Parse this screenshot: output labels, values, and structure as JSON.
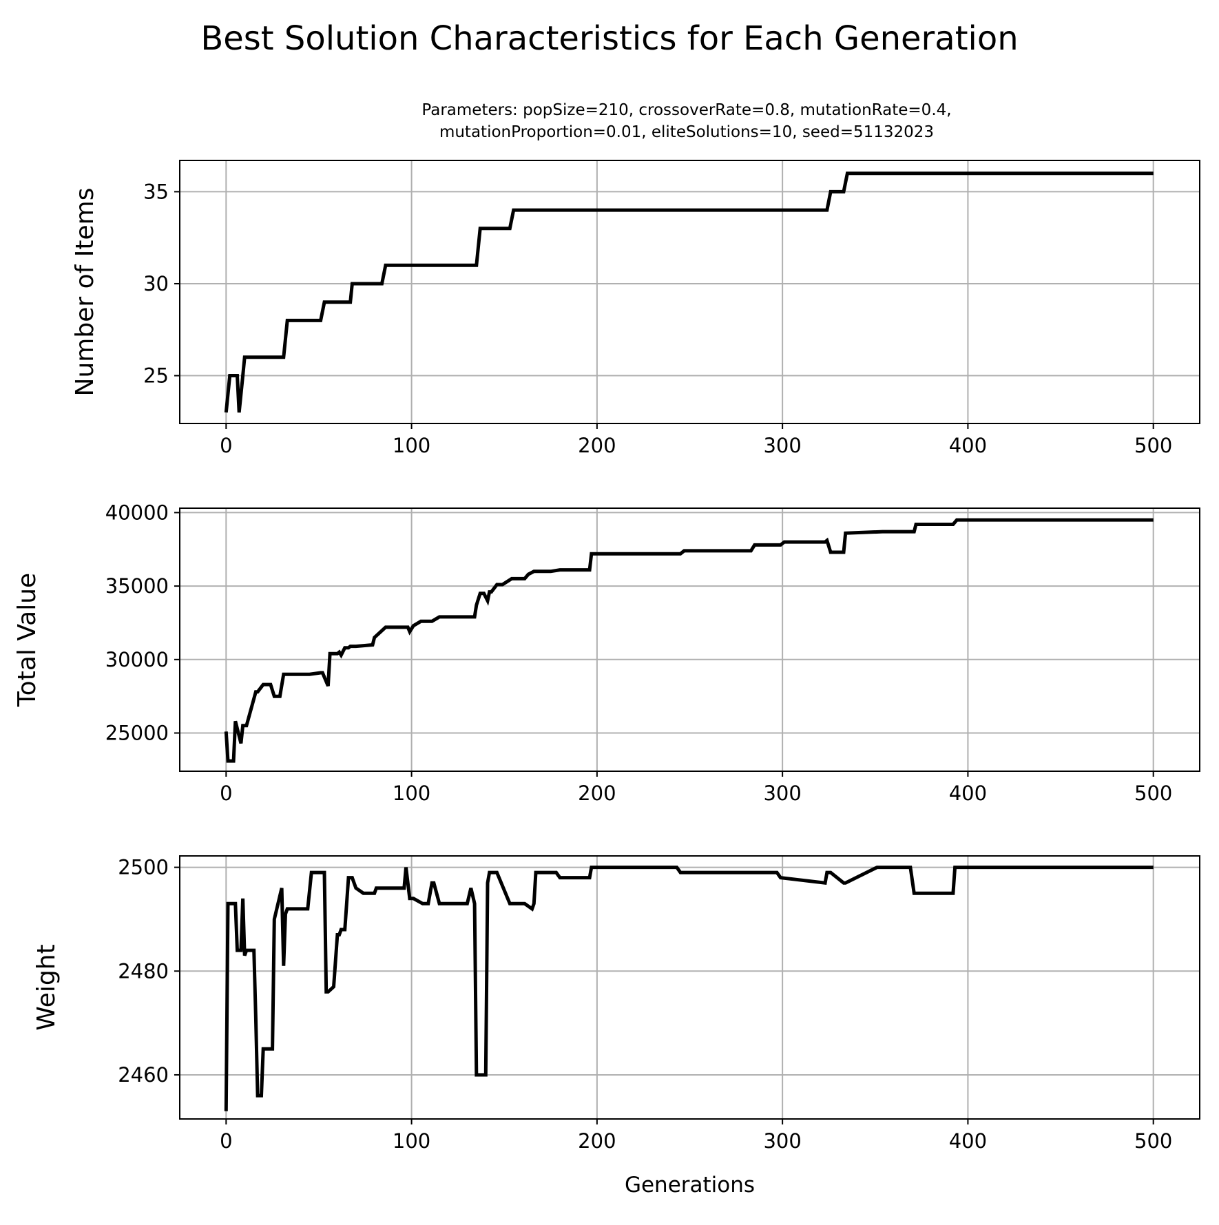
{
  "figure": {
    "title": "Best Solution Characteristics for Each Generation",
    "subtitle_line1": "Parameters: popSize=210, crossoverRate=0.8, mutationRate=0.4,",
    "subtitle_line2": "mutationProportion=0.01, eliteSolutions=10, seed=51132023"
  },
  "colors": {
    "line": "#000000",
    "grid": "#b0b0b0",
    "background": "#ffffff"
  },
  "chart_data": [
    {
      "type": "line",
      "ylabel": "Number of Items",
      "xlabel": "",
      "xlim": [
        -25,
        525
      ],
      "ylim": [
        22.4,
        36.7
      ],
      "xticks": [
        0,
        100,
        200,
        300,
        400,
        500
      ],
      "yticks": [
        25,
        30,
        35
      ],
      "grid": true,
      "x": [
        0,
        2,
        6,
        7,
        9,
        10,
        31,
        33,
        51,
        53,
        67,
        68,
        84,
        86,
        135,
        137,
        153,
        155,
        324,
        326,
        333,
        335,
        500
      ],
      "series": [
        {
          "values": [
            23,
            25,
            25,
            23,
            25,
            26,
            26,
            28,
            28,
            29,
            29,
            30,
            30,
            31,
            31,
            33,
            33,
            34,
            34,
            35,
            35,
            36,
            36
          ]
        }
      ]
    },
    {
      "type": "line",
      "ylabel": "Total Value",
      "xlabel": "",
      "xlim": [
        -25,
        525
      ],
      "ylim": [
        22400,
        40300
      ],
      "xticks": [
        0,
        100,
        200,
        300,
        400,
        500
      ],
      "yticks": [
        25000,
        30000,
        35000,
        40000
      ],
      "grid": true,
      "x": [
        0,
        1,
        4,
        5,
        8,
        9,
        11,
        16,
        17,
        20,
        24,
        26,
        29,
        31,
        45,
        51,
        52,
        55,
        56,
        60,
        61,
        62,
        64,
        66,
        67,
        70,
        79,
        80,
        86,
        98,
        99,
        101,
        105,
        111,
        115,
        134,
        135,
        137,
        139,
        141,
        142,
        143,
        146,
        149,
        154,
        161,
        163,
        166,
        175,
        180,
        196,
        197,
        245,
        247,
        283,
        285,
        299,
        301,
        323,
        324,
        326,
        333,
        334,
        354,
        371,
        372,
        392,
        394,
        500
      ],
      "series": [
        {
          "values": [
            25100,
            23100,
            23100,
            25800,
            24300,
            25500,
            25500,
            27800,
            27800,
            28300,
            28300,
            27500,
            27500,
            29000,
            29000,
            29100,
            29100,
            28200,
            30400,
            30400,
            30500,
            30300,
            30800,
            30800,
            30900,
            30900,
            31000,
            31500,
            32200,
            32200,
            31900,
            32300,
            32600,
            32600,
            32900,
            32900,
            33700,
            34500,
            34500,
            34000,
            34600,
            34600,
            35100,
            35100,
            35500,
            35500,
            35800,
            36000,
            36000,
            36100,
            36100,
            37200,
            37200,
            37400,
            37400,
            37800,
            37800,
            38000,
            38000,
            38100,
            37300,
            37300,
            38600,
            38700,
            38700,
            39200,
            39200,
            39500,
            39500
          ]
        }
      ]
    },
    {
      "type": "line",
      "ylabel": "Weight",
      "xlabel": "Generations",
      "xlim": [
        -25,
        525
      ],
      "ylim": [
        2451.5,
        2502.2
      ],
      "xticks": [
        0,
        100,
        200,
        300,
        400,
        500
      ],
      "yticks": [
        2460,
        2480,
        2500
      ],
      "grid": true,
      "x": [
        0,
        1,
        5,
        6,
        8,
        9,
        10,
        11,
        15,
        16,
        17,
        19,
        20,
        25,
        26,
        30,
        31,
        32,
        33,
        44,
        46,
        53,
        54,
        55,
        58,
        60,
        61,
        62,
        64,
        66,
        67,
        68,
        70,
        74,
        80,
        81,
        89,
        96,
        97,
        99,
        101,
        106,
        109,
        111,
        112,
        115,
        116,
        130,
        132,
        134,
        135,
        136,
        140,
        141,
        142,
        144,
        146,
        153,
        161,
        165,
        166,
        167,
        168,
        178,
        180,
        196,
        197,
        243,
        245,
        280,
        283,
        297,
        299,
        323,
        324,
        326,
        333,
        334,
        351,
        352,
        360,
        361,
        369,
        371,
        372,
        392,
        393,
        500
      ],
      "series": [
        {
          "values": [
            2453,
            2493,
            2493,
            2484,
            2484,
            2494,
            2483,
            2484,
            2484,
            2471,
            2456,
            2456,
            2465,
            2465,
            2490,
            2496,
            2481,
            2491,
            2492,
            2492,
            2499,
            2499,
            2476,
            2476,
            2477,
            2487,
            2487,
            2488,
            2488,
            2498,
            2498,
            2498,
            2496,
            2495,
            2495,
            2496,
            2496,
            2496,
            2500,
            2494,
            2494,
            2493,
            2493,
            2497,
            2497,
            2493,
            2493,
            2493,
            2496,
            2493,
            2460,
            2460,
            2460,
            2497,
            2499,
            2499,
            2499,
            2493,
            2493,
            2492,
            2493,
            2499,
            2499,
            2499,
            2498,
            2498,
            2500,
            2500,
            2499,
            2499,
            2499,
            2499,
            2498,
            2497,
            2499,
            2499,
            2497,
            2497,
            2500,
            2500,
            2500,
            2500,
            2500,
            2495,
            2495,
            2495,
            2500,
            2500
          ]
        }
      ]
    }
  ]
}
